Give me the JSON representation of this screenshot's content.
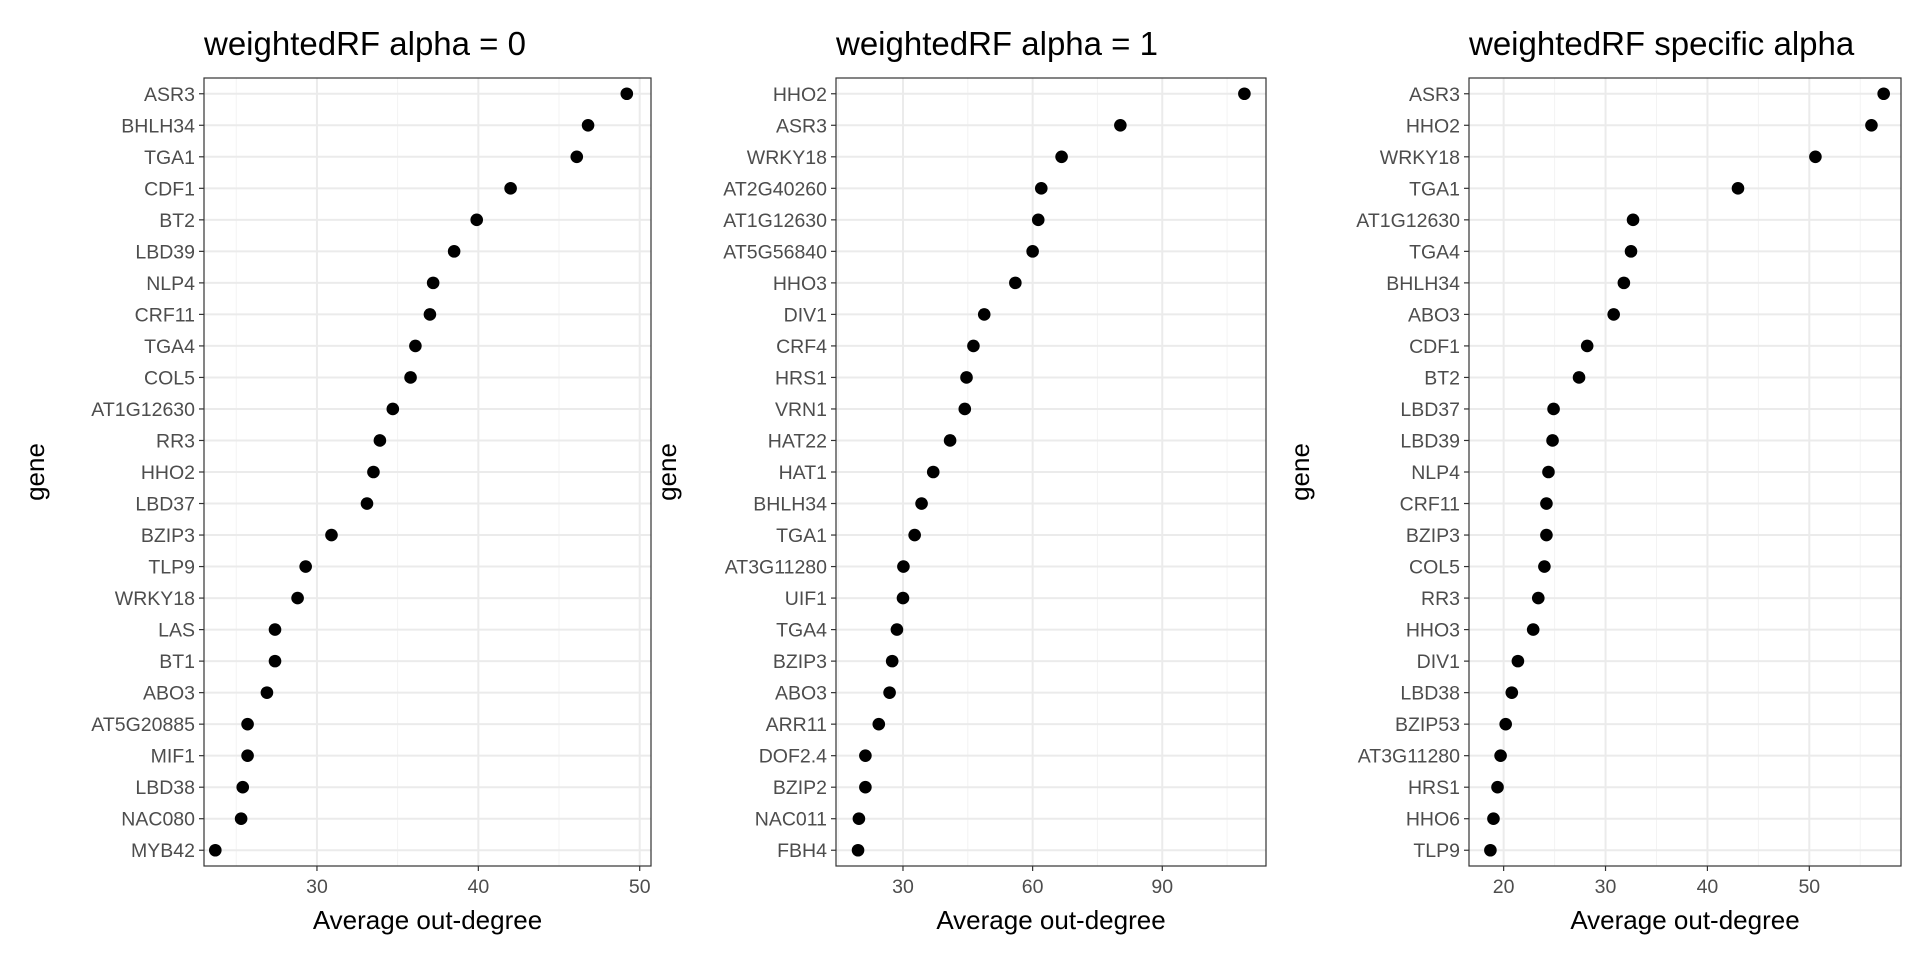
{
  "chart_data": [
    {
      "type": "scatter",
      "title": "weightedRF alpha = 0",
      "xlabel": "Average out-degree",
      "ylabel": "gene",
      "xlim": [
        23.0,
        50.7
      ],
      "xticks": [
        30,
        40,
        50
      ],
      "grid": true,
      "categories": [
        "ASR3",
        "BHLH34",
        "TGA1",
        "CDF1",
        "BT2",
        "LBD39",
        "NLP4",
        "CRF11",
        "TGA4",
        "COL5",
        "AT1G12630",
        "RR3",
        "HHO2",
        "LBD37",
        "BZIP3",
        "TLP9",
        "WRKY18",
        "LAS",
        "BT1",
        "ABO3",
        "AT5G20885",
        "MIF1",
        "LBD38",
        "NAC080",
        "MYB42"
      ],
      "values": [
        49.2,
        46.8,
        46.1,
        42.0,
        39.9,
        38.5,
        37.2,
        37.0,
        36.1,
        35.8,
        34.7,
        33.9,
        33.5,
        33.1,
        30.9,
        29.3,
        28.8,
        27.4,
        27.4,
        26.9,
        25.7,
        25.7,
        25.4,
        25.3,
        23.7
      ]
    },
    {
      "type": "scatter",
      "title": "weightedRF alpha = 1",
      "xlabel": "Average out-degree",
      "ylabel": "gene",
      "xlim": [
        14.5,
        114.0
      ],
      "xticks": [
        30,
        60,
        90
      ],
      "grid": true,
      "categories": [
        "HHO2",
        "ASR3",
        "WRKY18",
        "AT2G40260",
        "AT1G12630",
        "AT5G56840",
        "HHO3",
        "DIV1",
        "CRF4",
        "HRS1",
        "VRN1",
        "HAT22",
        "HAT1",
        "BHLH34",
        "TGA1",
        "AT3G11280",
        "UIF1",
        "TGA4",
        "BZIP3",
        "ABO3",
        "ARR11",
        "DOF2.4",
        "BZIP2",
        "NAC011",
        "FBH4"
      ],
      "values": [
        109.0,
        80.3,
        66.7,
        62.0,
        61.3,
        60.0,
        56.0,
        48.8,
        46.3,
        44.7,
        44.3,
        40.9,
        37.0,
        34.3,
        32.7,
        30.1,
        30.0,
        28.6,
        27.5,
        26.9,
        24.4,
        21.3,
        21.3,
        19.8,
        19.6
      ]
    },
    {
      "type": "scatter",
      "title": "weightedRF specific alpha",
      "xlabel": "Average out-degree",
      "ylabel": "gene",
      "xlim": [
        16.6,
        59.0
      ],
      "xticks": [
        20,
        30,
        40,
        50
      ],
      "grid": true,
      "categories": [
        "ASR3",
        "HHO2",
        "WRKY18",
        "TGA1",
        "AT1G12630",
        "TGA4",
        "BHLH34",
        "ABO3",
        "CDF1",
        "BT2",
        "LBD37",
        "LBD39",
        "NLP4",
        "CRF11",
        "BZIP3",
        "COL5",
        "RR3",
        "HHO3",
        "DIV1",
        "LBD38",
        "BZIP53",
        "AT3G11280",
        "HRS1",
        "HHO6",
        "TLP9"
      ],
      "values": [
        57.3,
        56.1,
        50.6,
        43.0,
        32.7,
        32.5,
        31.8,
        30.8,
        28.2,
        27.4,
        24.9,
        24.8,
        24.4,
        24.2,
        24.2,
        24.0,
        23.4,
        22.9,
        21.4,
        20.8,
        20.2,
        19.7,
        19.4,
        19.0,
        18.7
      ]
    }
  ]
}
